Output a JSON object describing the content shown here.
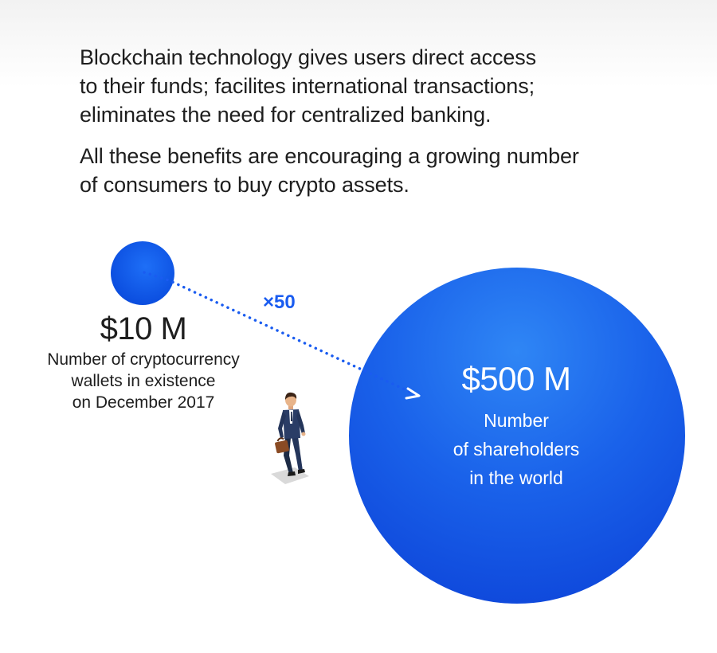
{
  "intro": {
    "paragraph1": [
      "Blockchain technology gives users direct access",
      "to their funds; facilites international transactions;",
      "eliminates the need for centralized banking."
    ],
    "paragraph2": [
      "All these benefits are encouraging a growing number",
      "of consumers to buy crypto assets."
    ]
  },
  "comparison": {
    "multiplier": "×50",
    "small": {
      "value": "$10 M",
      "description": [
        "Number of cryptocurrency",
        "wallets in existence",
        "on December 2017"
      ]
    },
    "big": {
      "value": "$500 M",
      "description": [
        "Number",
        "of shareholders",
        "in the world"
      ]
    }
  },
  "colors": {
    "accent": "#1a5cf0",
    "circle": "#0b3fd6",
    "text": "#1e1e1e",
    "on_circle_text": "#ffffff"
  },
  "icons": {
    "figure": "businessman-with-briefcase-icon",
    "arrow": "dotted-arrow"
  }
}
